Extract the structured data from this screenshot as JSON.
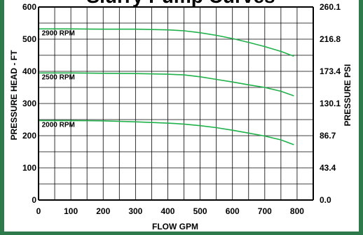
{
  "chart_data": {
    "type": "line",
    "title": "Slurry Pump Curves",
    "xlabel": "FLOW GPM",
    "ylabel": "PRESSURE HEAD - FT",
    "y2label": "PRESSURE PSI",
    "xlim": [
      0,
      850
    ],
    "ylim": [
      0,
      600
    ],
    "x_ticks": [
      0,
      100,
      200,
      300,
      400,
      500,
      600,
      700,
      800
    ],
    "y_ticks": [
      0,
      100,
      200,
      300,
      400,
      500,
      600
    ],
    "x_tick_labels": [
      "0",
      "100",
      "200",
      "300",
      "400",
      "500",
      "600",
      "700",
      "800"
    ],
    "y_tick_labels": [
      "0",
      "100",
      "200",
      "300",
      "400",
      "500",
      "600"
    ],
    "y2_ticks": [
      0,
      100,
      200,
      300,
      400,
      500,
      600
    ],
    "y2_tick_labels": [
      "0.0",
      "43.4",
      "86.7",
      "130.1",
      "173.4",
      "216.8",
      "260.1"
    ],
    "grid": true,
    "series_color": "#1fb14a",
    "series": [
      {
        "name": "2900 RPM",
        "label_x": 10,
        "x": [
          0,
          100,
          200,
          300,
          400,
          450,
          500,
          550,
          600,
          650,
          700,
          750,
          790
        ],
        "y": [
          532,
          532,
          531,
          531,
          529,
          526,
          520,
          512,
          502,
          490,
          477,
          462,
          447
        ]
      },
      {
        "name": "2500 RPM",
        "label_x": 10,
        "x": [
          0,
          100,
          200,
          300,
          400,
          450,
          500,
          550,
          600,
          650,
          700,
          750,
          790
        ],
        "y": [
          395,
          395,
          394,
          393,
          391,
          389,
          383,
          375,
          367,
          358,
          350,
          338,
          324
        ]
      },
      {
        "name": "2000 RPM",
        "label_x": 10,
        "x": [
          0,
          100,
          200,
          300,
          400,
          450,
          500,
          550,
          600,
          650,
          700,
          750,
          790
        ],
        "y": [
          247,
          247,
          246,
          243,
          239,
          236,
          231,
          225,
          217,
          208,
          199,
          187,
          172
        ]
      }
    ]
  }
}
